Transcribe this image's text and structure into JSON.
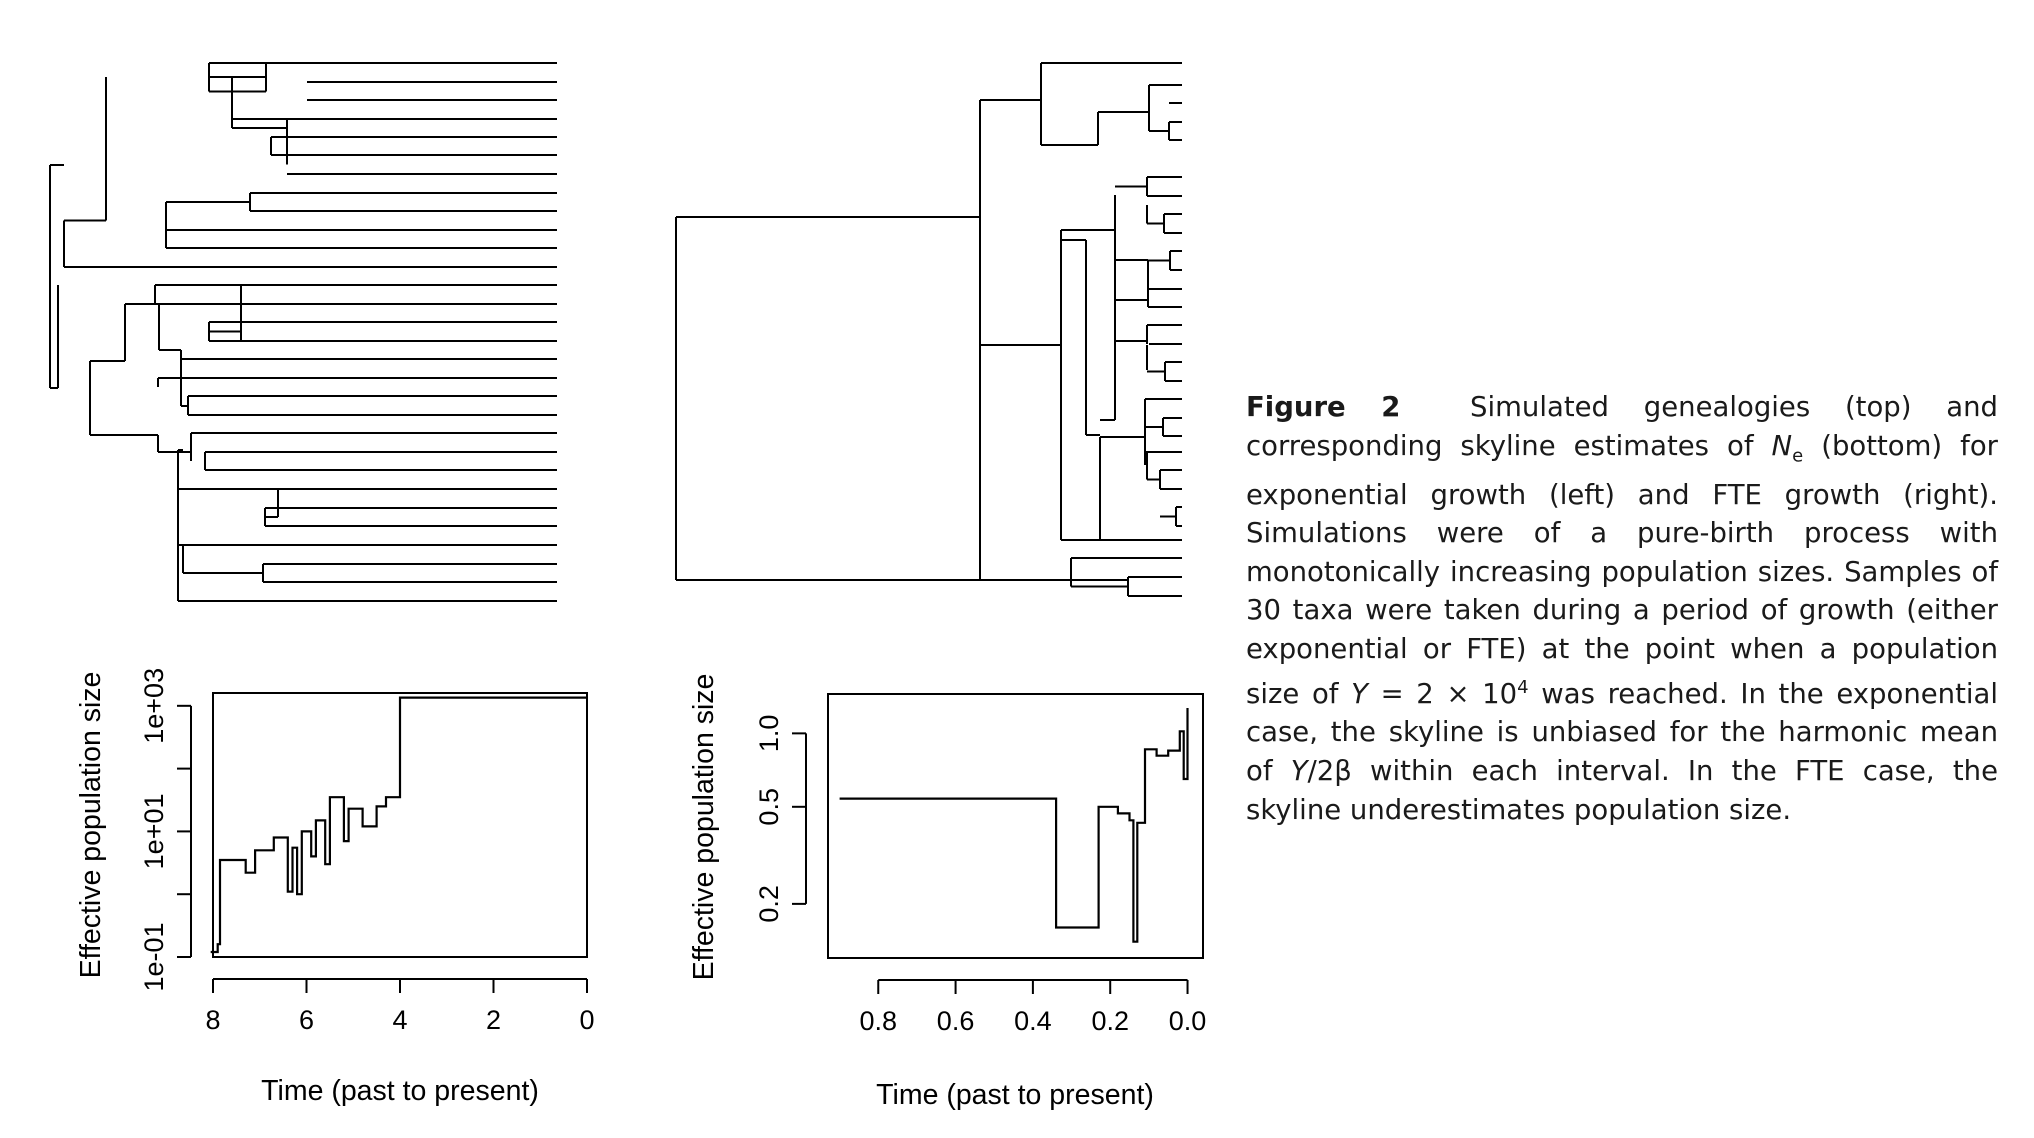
{
  "caption": {
    "label": "Figure 2",
    "text_part1": "Simulated genealogies (top) and corresponding skyline estimates of ",
    "ne_main": "N",
    "ne_sub": "e",
    "text_part2": " (bottom) for exponential growth (left) and FTE growth (right). Simulations were of a pure-birth process with monotonically increasing population sizes. Samples of 30 taxa were taken during a period of growth (either exponential or FTE) at the point when a population size of ",
    "y_sym": "Y",
    "y_eq": " = 2 × 10",
    "y_exp": "4",
    "text_part3": " was reached. In the exponential case, the skyline is unbiased for the harmonic mean of ",
    "y_sym2": "Y",
    "text_part4": "/2β within each interval. In the FTE case, the skyline underestimates population size."
  },
  "chart_data": [
    {
      "type": "line",
      "panel": "left skyline (exponential growth)",
      "step": true,
      "xlabel": "Time (past to present)",
      "ylabel": "Effective population size",
      "x_reversed": true,
      "y_log": true,
      "xlim": [
        8.0,
        0.0
      ],
      "ylim": [
        0.1,
        1600
      ],
      "x_ticks": [
        8,
        6,
        4,
        2,
        0
      ],
      "x_tick_labels": [
        "8",
        "6",
        "4",
        "2",
        "0"
      ],
      "y_ticks": [
        0.1,
        10,
        1000
      ],
      "y_tick_labels": [
        "1e-01",
        "1e+01",
        "1e+03"
      ],
      "y_minor_ticks": [
        1,
        100
      ],
      "series": [
        {
          "points": [
            [
              8.05,
              0.12
            ],
            [
              7.9,
              0.16
            ],
            [
              7.85,
              3.5
            ],
            [
              7.3,
              2.2
            ],
            [
              7.1,
              5.0
            ],
            [
              6.7,
              8.0
            ],
            [
              6.4,
              1.1
            ],
            [
              6.3,
              5.5
            ],
            [
              6.2,
              1.0
            ],
            [
              6.1,
              10.0
            ],
            [
              5.9,
              4.0
            ],
            [
              5.8,
              15.0
            ],
            [
              5.6,
              3.0
            ],
            [
              5.5,
              35.0
            ],
            [
              5.2,
              7.0
            ],
            [
              5.1,
              23.0
            ],
            [
              4.8,
              12.0
            ],
            [
              4.5,
              25.0
            ],
            [
              4.3,
              35.0
            ],
            [
              4.0,
              1350
            ],
            [
              0.0,
              1350
            ]
          ]
        }
      ]
    },
    {
      "type": "line",
      "panel": "right skyline (FTE growth)",
      "step": true,
      "xlabel": "Time (past to present)",
      "ylabel": "Effective population size",
      "x_reversed": true,
      "y_log": true,
      "xlim": [
        0.93,
        -0.04
      ],
      "ylim": [
        0.12,
        1.45
      ],
      "x_ticks": [
        0.8,
        0.6,
        0.4,
        0.2,
        0.0
      ],
      "x_tick_labels": [
        "0.8",
        "0.6",
        "0.4",
        "0.2",
        "0.0"
      ],
      "y_ticks": [
        0.2,
        0.5,
        1.0
      ],
      "y_tick_labels": [
        "0.2",
        "0.5",
        "1.0"
      ],
      "series": [
        {
          "points": [
            [
              0.9,
              0.54
            ],
            [
              0.36,
              0.54
            ],
            [
              0.34,
              0.16
            ],
            [
              0.24,
              0.16
            ],
            [
              0.23,
              0.5
            ],
            [
              0.18,
              0.47
            ],
            [
              0.15,
              0.44
            ],
            [
              0.14,
              0.14
            ],
            [
              0.13,
              0.43
            ],
            [
              0.11,
              0.86
            ],
            [
              0.08,
              0.81
            ],
            [
              0.05,
              0.85
            ],
            [
              0.02,
              1.02
            ],
            [
              0.01,
              0.65
            ],
            [
              0.0,
              1.27
            ]
          ]
        }
      ]
    }
  ]
}
